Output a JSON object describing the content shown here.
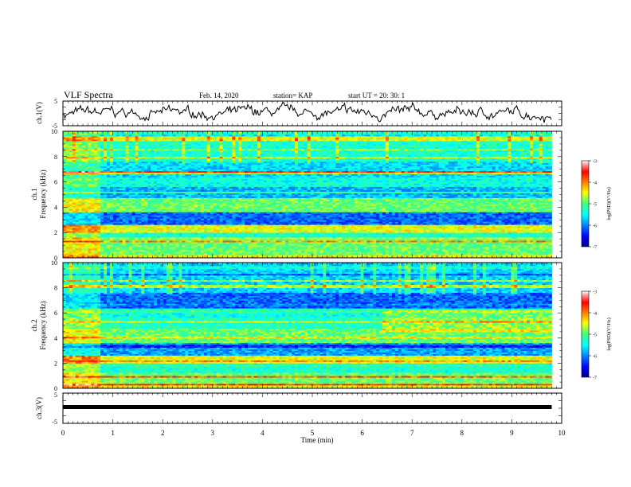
{
  "header": {
    "title": "VLF Spectra",
    "date": "Feb. 14, 2020",
    "station": "station= KAP",
    "start_ut": "start  UT =   20: 30: 1"
  },
  "chart_data": [
    {
      "type": "line",
      "ylabel": "ch.1(V)",
      "ylim": [
        -5,
        5
      ],
      "yticks": [
        "5",
        "-5"
      ],
      "xlim": [
        0,
        10
      ],
      "description_series": "noisy waveform fluctuating roughly between -5 and 5 V over 0–9.8 min"
    },
    {
      "type": "heatmap",
      "ylabel": "ch.1\nFrequency (kHz)",
      "ylim": [
        0,
        10
      ],
      "yticks": [
        "0",
        "2",
        "4",
        "6",
        "8",
        "10"
      ],
      "xlim": [
        0,
        10
      ],
      "colorbar": {
        "label": "log(PSD)(V²/Hz)",
        "range": [
          -7,
          -3
        ],
        "ticks": [
          "-3",
          "-4",
          "-5",
          "-6",
          "-7"
        ]
      },
      "data_end_min": 9.8
    },
    {
      "type": "heatmap",
      "ylabel": "ch.2\nFrequency (kHz)",
      "ylim": [
        0,
        10
      ],
      "yticks": [
        "0",
        "2",
        "4",
        "6",
        "8",
        "10"
      ],
      "xlim": [
        0,
        10
      ],
      "colorbar": {
        "label": "log(PSD)(V²/Hz)",
        "range": [
          -7,
          -3
        ],
        "ticks": [
          "-3",
          "-4",
          "-5",
          "-6",
          "-7"
        ]
      },
      "data_end_min": 9.8
    },
    {
      "type": "line",
      "ylabel": "ch.3(V)",
      "ylim": [
        -5,
        5
      ],
      "yticks": [
        "5",
        "-5"
      ],
      "xlim": [
        0,
        10
      ],
      "value": -1.0,
      "data_end_min": 9.8
    }
  ],
  "xaxis": {
    "label": "Time (min)",
    "ticks": [
      "0",
      "1",
      "2",
      "3",
      "4",
      "5",
      "6",
      "7",
      "8",
      "9",
      "10"
    ]
  },
  "labels": {
    "ch1_v": "ch.1(V)",
    "ch1_freq_a": "ch.1",
    "ch1_freq_b": "Frequency (kHz)",
    "ch2_freq_a": "ch.2",
    "ch2_freq_b": "Frequency (kHz)",
    "ch3_v": "ch.3(V)",
    "cb_label": "log(PSD)(V²/Hz)"
  }
}
